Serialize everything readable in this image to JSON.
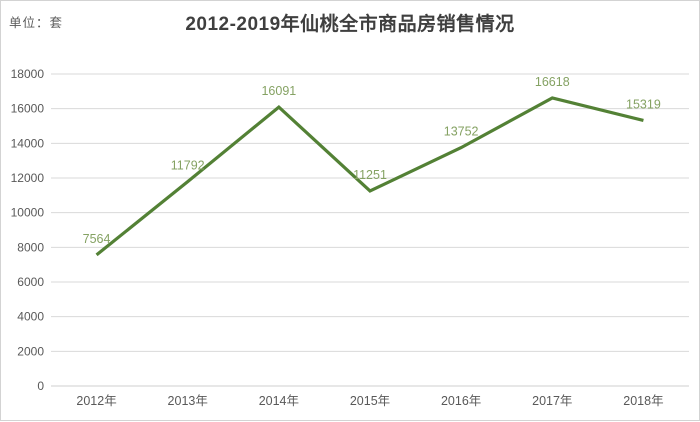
{
  "page": {
    "unit_label": "单位：套",
    "title": "2012-2019年仙桃全市商品房销售情况"
  },
  "chart_data": {
    "type": "line",
    "title": "2012-2019年仙桃全市商品房销售情况",
    "ylabel": "单位：套",
    "categories": [
      "2012年",
      "2013年",
      "2014年",
      "2015年",
      "2016年",
      "2017年",
      "2018年"
    ],
    "values": [
      7564,
      11792,
      16091,
      11251,
      13752,
      16618,
      15319
    ],
    "ylim": [
      0,
      18000
    ],
    "ytick_step": 2000,
    "grid": true,
    "legend": false,
    "data_labels": true,
    "colors": {
      "line": "#538135",
      "data_label": "#85a263",
      "axis_label": "#595959",
      "gridline": "#d9d9d9",
      "axis_line": "#cfcfcf",
      "title": "#3f3f3f"
    }
  }
}
